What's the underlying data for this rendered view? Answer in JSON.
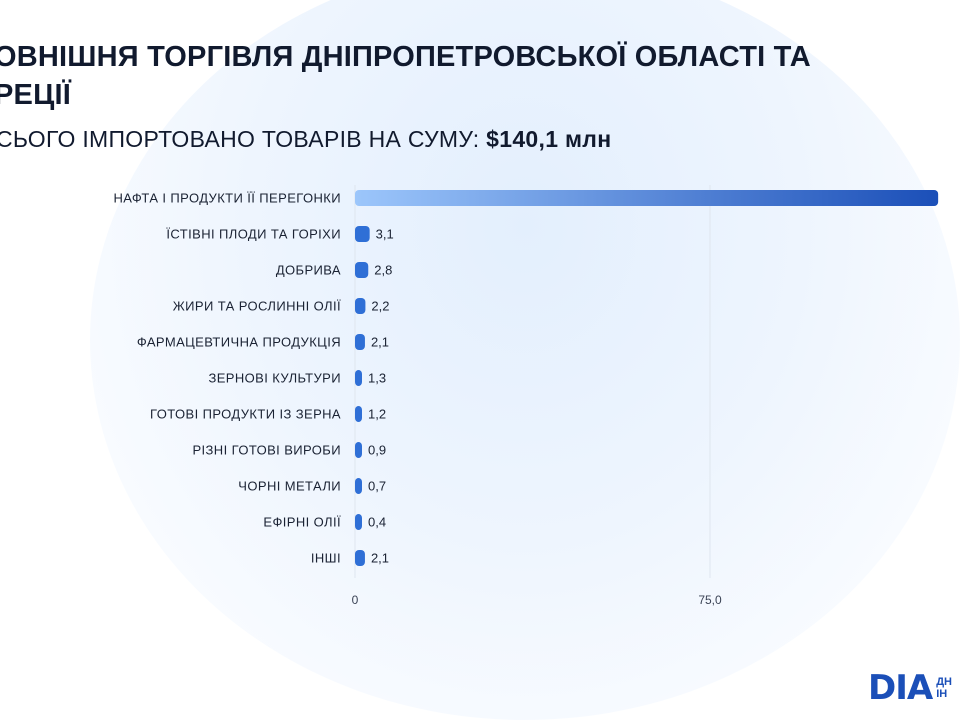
{
  "header": {
    "title_line1": "ОВНІШНЯ ТОРГІВЛЯ ДНІПРОПЕТРОВСЬКОЇ ОБЛАСТІ ТА",
    "title_line2": "РЕЦІЇ",
    "subtitle_prefix": "СЬОГО ІМПОРТОВАНО ТОВАРІВ НА СУМУ: ",
    "subtitle_value": "$140,1 млн"
  },
  "logo": {
    "mark": "DIA",
    "sub_line1": "ДН",
    "sub_line2": "ІН"
  },
  "colors": {
    "bar_start": "#9cc6fb",
    "bar_end": "#1b4fb8",
    "small_bar": "#2f6fd6",
    "grid": "#dfe6ef",
    "text": "#1a2233"
  },
  "chart_data": {
    "type": "bar",
    "orientation": "horizontal",
    "categories": [
      "НАФТА І ПРОДУКТИ ЇЇ ПЕРЕГОНКИ",
      "ЇСТІВНІ ПЛОДИ ТА ГОРІХИ",
      "ДОБРИВА",
      "ЖИРИ ТА РОСЛИННІ ОЛІЇ",
      "ФАРМАЦЕВТИЧНА ПРОДУКЦІЯ",
      "ЗЕРНОВІ КУЛЬТУРИ",
      "ГОТОВІ ПРОДУКТИ ІЗ ЗЕРНА",
      "РІЗНІ ГОТОВІ ВИРОБИ",
      "ЧОРНІ МЕТАЛИ",
      "ЕФІРНІ ОЛІЇ",
      "ІНШІ"
    ],
    "values": [
      123.2,
      3.1,
      2.8,
      2.2,
      2.1,
      1.3,
      1.2,
      0.9,
      0.7,
      0.4,
      2.1
    ],
    "value_labels": [
      "",
      "3,1",
      "2,8",
      "2,2",
      "2,1",
      "1,3",
      "1,2",
      "0,9",
      "0,7",
      "0,4",
      "2,1"
    ],
    "x_ticks": [
      0,
      75
    ],
    "x_tick_labels": [
      "0",
      "75,0"
    ],
    "xlim": [
      0,
      150
    ],
    "grid": true
  }
}
